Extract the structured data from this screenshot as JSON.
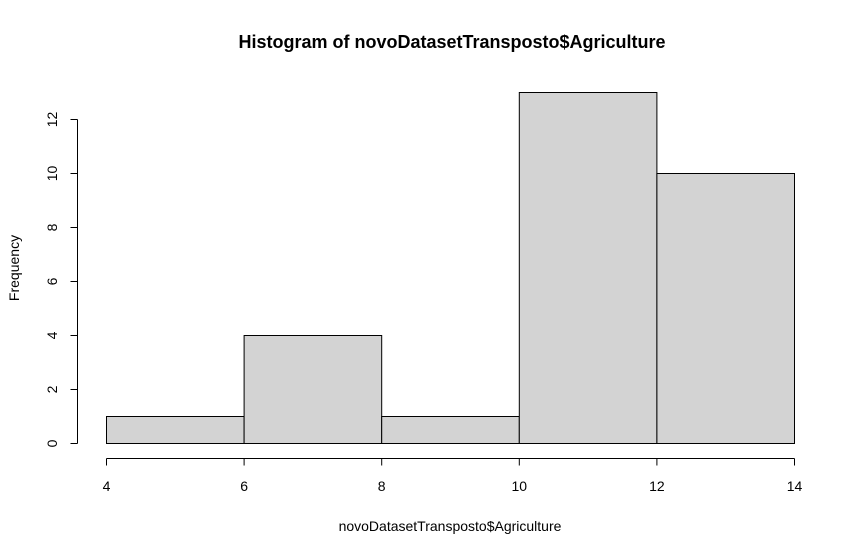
{
  "chart_data": {
    "type": "bar",
    "title": "Histogram of novoDatasetTransposto$Agriculture",
    "xlabel": "novoDatasetTransposto$Agriculture",
    "ylabel": "Frequency",
    "bins": [
      {
        "start": 4,
        "end": 6,
        "count": 1
      },
      {
        "start": 6,
        "end": 8,
        "count": 4
      },
      {
        "start": 8,
        "end": 10,
        "count": 1
      },
      {
        "start": 10,
        "end": 12,
        "count": 13
      },
      {
        "start": 12,
        "end": 14,
        "count": 10
      }
    ],
    "xlim": [
      4,
      14
    ],
    "ylim": [
      0,
      13
    ],
    "x_ticks": [
      "4",
      "6",
      "8",
      "10",
      "12",
      "14"
    ],
    "y_ticks": [
      "0",
      "2",
      "4",
      "6",
      "8",
      "10",
      "12"
    ],
    "bar_color": "#d3d3d3",
    "grid": false
  }
}
